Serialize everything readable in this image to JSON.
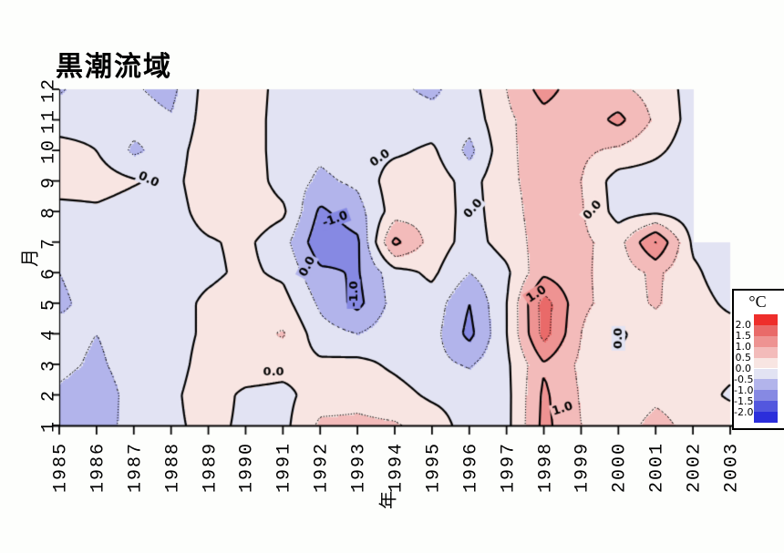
{
  "chart_data": {
    "type": "heatmap",
    "title": "黒潮流域",
    "xlabel": "年",
    "ylabel": "月",
    "unit": "°C",
    "x_years": [
      1985,
      1986,
      1987,
      1988,
      1989,
      1990,
      1991,
      1992,
      1993,
      1994,
      1995,
      1996,
      1997,
      1998,
      1999,
      2000,
      2001,
      2002,
      2003
    ],
    "y_months": [
      1,
      2,
      3,
      4,
      5,
      6,
      7,
      8,
      9,
      10,
      11,
      12
    ],
    "x_range": [
      1985,
      2003
    ],
    "y_range": [
      1,
      12
    ],
    "grid_on": false,
    "legend_position": "right",
    "values_by_month": [
      [
        -0.6,
        -0.75,
        -0.3,
        -0.1,
        0.15,
        -0.1,
        -0.15,
        0.6,
        0.6,
        0.55,
        0.3,
        -0.25,
        -0.15,
        1.15,
        0.5,
        0.3,
        0.65,
        0.35,
        0.4
      ],
      [
        -0.6,
        -0.8,
        -0.3,
        -0.1,
        0.25,
        -0.1,
        -0.15,
        0.25,
        0.35,
        0.2,
        -0.1,
        -0.2,
        -0.15,
        1.1,
        0.45,
        0.2,
        0.4,
        0.3,
        -0.1
      ],
      [
        -0.35,
        -0.6,
        -0.25,
        -0.2,
        0.2,
        0.3,
        0.2,
        0.1,
        0.15,
        -0.1,
        -0.35,
        -0.55,
        -0.1,
        0.95,
        0.4,
        0.1,
        0.3,
        0.3,
        0.2
      ],
      [
        -0.3,
        -0.5,
        -0.25,
        -0.2,
        0.1,
        0.3,
        0.55,
        -0.3,
        -0.5,
        -0.2,
        -0.3,
        -1.15,
        -0.02,
        1.7,
        0.5,
        -0.1,
        0.3,
        0.2,
        0.2
      ],
      [
        -0.6,
        -0.3,
        -0.2,
        -0.2,
        0.1,
        0.25,
        0.2,
        -0.6,
        -1.15,
        -0.3,
        -0.2,
        -1.0,
        -0.02,
        1.75,
        0.6,
        0.3,
        0.55,
        0.2,
        -0.1
      ],
      [
        -0.5,
        -0.25,
        -0.2,
        -0.2,
        -0.1,
        0.1,
        -0.1,
        -0.9,
        -1.05,
        -0.2,
        0.1,
        -0.5,
        -0.1,
        0.9,
        0.6,
        0.25,
        0.6,
        0.1,
        -0.3
      ],
      [
        -0.2,
        -0.2,
        -0.2,
        -0.2,
        -0.05,
        0.1,
        -0.3,
        -1.35,
        -1.1,
        1.15,
        0.3,
        -0.2,
        0.2,
        0.75,
        0.6,
        0.3,
        1.55,
        -0.1,
        -0.3
      ],
      [
        -0.2,
        -0.1,
        -0.25,
        -0.2,
        0.2,
        0.3,
        0.1,
        -1.1,
        -0.7,
        0.25,
        0.35,
        -0.2,
        0.3,
        0.75,
        0.55,
        -0.2,
        -0.1,
        -0.3,
        null
      ],
      [
        0.3,
        0.25,
        0.05,
        -0.15,
        0.3,
        0.3,
        -0.2,
        -0.6,
        -0.4,
        0.3,
        0.3,
        -0.2,
        0.4,
        0.7,
        0.5,
        -0.25,
        -0.25,
        -0.3,
        null
      ],
      [
        0.2,
        0.0,
        -0.6,
        -0.25,
        0.3,
        0.3,
        -0.25,
        -0.4,
        -0.2,
        -0.1,
        0.1,
        -0.65,
        0.4,
        0.75,
        0.6,
        0.4,
        0.1,
        -0.25,
        null
      ],
      [
        -0.25,
        -0.2,
        -0.3,
        -0.45,
        0.25,
        0.3,
        -0.25,
        -0.3,
        -0.2,
        -0.3,
        -0.3,
        -0.3,
        0.4,
        0.8,
        0.65,
        1.15,
        0.4,
        -0.2,
        null
      ],
      [
        -0.55,
        -0.25,
        -0.45,
        -0.65,
        0.25,
        0.3,
        -0.2,
        -0.5,
        -0.45,
        -0.4,
        -0.6,
        -0.2,
        0.5,
        1.2,
        0.7,
        0.6,
        0.3,
        -0.2,
        null
      ]
    ],
    "band_thresholds": [
      -2,
      -1.5,
      -1,
      -0.5,
      0,
      0.5,
      1,
      1.5,
      2
    ],
    "band_colors_low_to_high": [
      "#2b2edb",
      "#5357de",
      "#8689e3",
      "#b2b4eb",
      "#e2e3f3",
      "#f8e5e2",
      "#f3bbba",
      "#ee9392",
      "#e96a69",
      "#ee2e2b"
    ],
    "contour_levels_solid": [
      -1,
      0,
      1
    ],
    "contour_levels_dotted": [
      -1.5,
      -0.5,
      0.5,
      1.5
    ],
    "contour_line_color": "#000000",
    "contour_labels": [
      {
        "text": "0.0",
        "year": 1987.4,
        "month": 9.05,
        "rot": 25
      },
      {
        "text": "0.0",
        "year": 1993.6,
        "month": 9.75,
        "rot": -35
      },
      {
        "text": "-1.0",
        "year": 1992.4,
        "month": 7.75,
        "rot": -20
      },
      {
        "text": "0.0",
        "year": 1991.65,
        "month": 6.2,
        "rot": -62
      },
      {
        "text": "-1.0",
        "year": 1992.9,
        "month": 5.3,
        "rot": -90
      },
      {
        "text": "0.0",
        "year": 1990.75,
        "month": 2.75,
        "rot": 0
      },
      {
        "text": "0.0",
        "year": 1996.1,
        "month": 8.1,
        "rot": -48
      },
      {
        "text": "0.0",
        "year": 1999.3,
        "month": 8.05,
        "rot": -48
      },
      {
        "text": "1.0",
        "year": 1997.8,
        "month": 5.3,
        "rot": -33
      },
      {
        "text": "1.0",
        "year": 1998.5,
        "month": 1.55,
        "rot": -18
      },
      {
        "text": "0.0",
        "year": 2000.0,
        "month": 3.85,
        "rot": -90
      }
    ]
  },
  "legend": {
    "title": "°C",
    "tick_labels": [
      "2.0",
      "1.5",
      "1.0",
      "0.5",
      "0.0",
      "-0.5",
      "-1.0",
      "-1.5",
      "-2.0"
    ]
  }
}
